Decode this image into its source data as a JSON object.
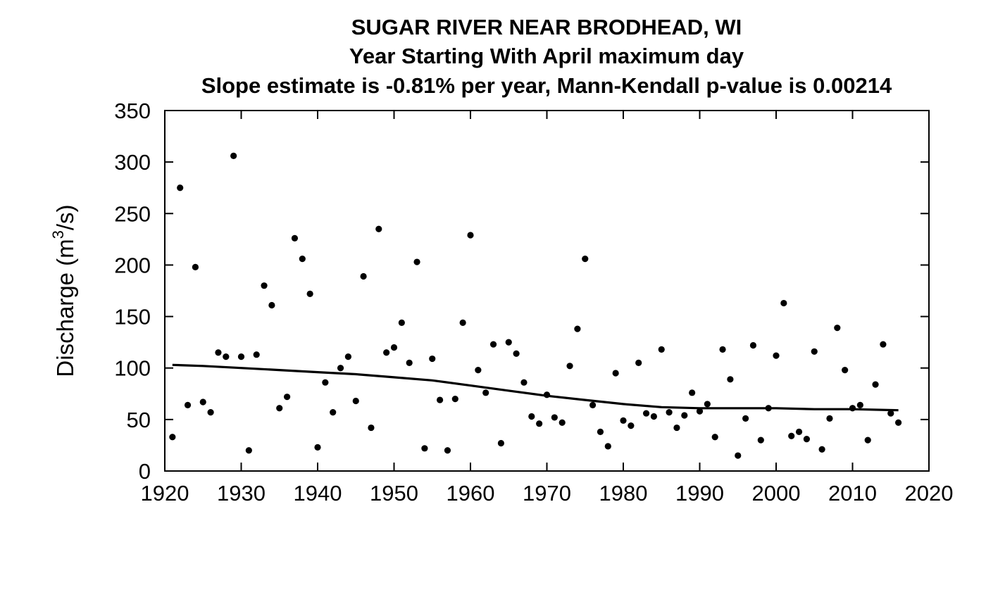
{
  "chart_data": {
    "type": "scatter",
    "title": "SUGAR RIVER NEAR BRODHEAD, WI",
    "subtitle": "Year Starting With April  maximum day",
    "subtitle2": "Slope estimate is -0.81% per year, Mann-Kendall p-value is 0.00214",
    "ylabel": {
      "prefix": "Discharge (m",
      "sup": "3",
      "suffix": "/s)"
    },
    "xlabel": "",
    "xlim": [
      1920,
      2020
    ],
    "ylim": [
      0,
      350
    ],
    "xticks": [
      1920,
      1930,
      1940,
      1950,
      1960,
      1970,
      1980,
      1990,
      2000,
      2010,
      2020
    ],
    "yticks": [
      0,
      50,
      100,
      150,
      200,
      250,
      300,
      350
    ],
    "grid": false,
    "series": [
      {
        "points": [
          [
            1921,
            33
          ],
          [
            1922,
            275
          ],
          [
            1923,
            64
          ],
          [
            1924,
            198
          ],
          [
            1925,
            67
          ],
          [
            1926,
            57
          ],
          [
            1927,
            115
          ],
          [
            1928,
            111
          ],
          [
            1929,
            306
          ],
          [
            1930,
            111
          ],
          [
            1931,
            20
          ],
          [
            1932,
            113
          ],
          [
            1933,
            180
          ],
          [
            1934,
            161
          ],
          [
            1935,
            61
          ],
          [
            1936,
            72
          ],
          [
            1937,
            226
          ],
          [
            1938,
            206
          ],
          [
            1939,
            172
          ],
          [
            1940,
            23
          ],
          [
            1941,
            86
          ],
          [
            1942,
            57
          ],
          [
            1943,
            100
          ],
          [
            1944,
            111
          ],
          [
            1945,
            68
          ],
          [
            1946,
            189
          ],
          [
            1947,
            42
          ],
          [
            1948,
            235
          ],
          [
            1949,
            115
          ],
          [
            1950,
            120
          ],
          [
            1951,
            144
          ],
          [
            1952,
            105
          ],
          [
            1953,
            203
          ],
          [
            1954,
            22
          ],
          [
            1955,
            109
          ],
          [
            1956,
            69
          ],
          [
            1957,
            20
          ],
          [
            1958,
            70
          ],
          [
            1959,
            144
          ],
          [
            1960,
            229
          ],
          [
            1961,
            98
          ],
          [
            1962,
            76
          ],
          [
            1963,
            123
          ],
          [
            1964,
            27
          ],
          [
            1965,
            125
          ],
          [
            1966,
            114
          ],
          [
            1967,
            86
          ],
          [
            1968,
            53
          ],
          [
            1969,
            46
          ],
          [
            1970,
            74
          ],
          [
            1971,
            52
          ],
          [
            1972,
            47
          ],
          [
            1973,
            102
          ],
          [
            1974,
            138
          ],
          [
            1975,
            206
          ],
          [
            1976,
            64
          ],
          [
            1977,
            38
          ],
          [
            1978,
            24
          ],
          [
            1979,
            95
          ],
          [
            1980,
            49
          ],
          [
            1981,
            44
          ],
          [
            1982,
            105
          ],
          [
            1983,
            56
          ],
          [
            1984,
            53
          ],
          [
            1985,
            118
          ],
          [
            1986,
            57
          ],
          [
            1987,
            42
          ],
          [
            1988,
            54
          ],
          [
            1989,
            76
          ],
          [
            1990,
            58
          ],
          [
            1991,
            65
          ],
          [
            1992,
            33
          ],
          [
            1993,
            118
          ],
          [
            1994,
            89
          ],
          [
            1995,
            15
          ],
          [
            1996,
            51
          ],
          [
            1997,
            122
          ],
          [
            1998,
            30
          ],
          [
            1999,
            61
          ],
          [
            2000,
            112
          ],
          [
            2001,
            163
          ],
          [
            2002,
            34
          ],
          [
            2003,
            38
          ],
          [
            2004,
            31
          ],
          [
            2005,
            116
          ],
          [
            2006,
            21
          ],
          [
            2007,
            51
          ],
          [
            2008,
            139
          ],
          [
            2009,
            98
          ],
          [
            2010,
            61
          ],
          [
            2011,
            64
          ],
          [
            2012,
            30
          ],
          [
            2013,
            84
          ],
          [
            2014,
            123
          ],
          [
            2015,
            56
          ],
          [
            2016,
            47
          ]
        ]
      }
    ],
    "trend_line": [
      [
        1921,
        103
      ],
      [
        1925,
        102
      ],
      [
        1930,
        100
      ],
      [
        1935,
        98
      ],
      [
        1940,
        96
      ],
      [
        1945,
        94
      ],
      [
        1950,
        91
      ],
      [
        1955,
        88
      ],
      [
        1960,
        83
      ],
      [
        1965,
        78
      ],
      [
        1970,
        73
      ],
      [
        1975,
        69
      ],
      [
        1980,
        65
      ],
      [
        1985,
        62
      ],
      [
        1990,
        61
      ],
      [
        1995,
        61
      ],
      [
        2000,
        61
      ],
      [
        2005,
        60
      ],
      [
        2010,
        60
      ],
      [
        2016,
        59
      ]
    ],
    "colors": {
      "points": "#000000",
      "line": "#000000",
      "axes": "#000000"
    }
  }
}
